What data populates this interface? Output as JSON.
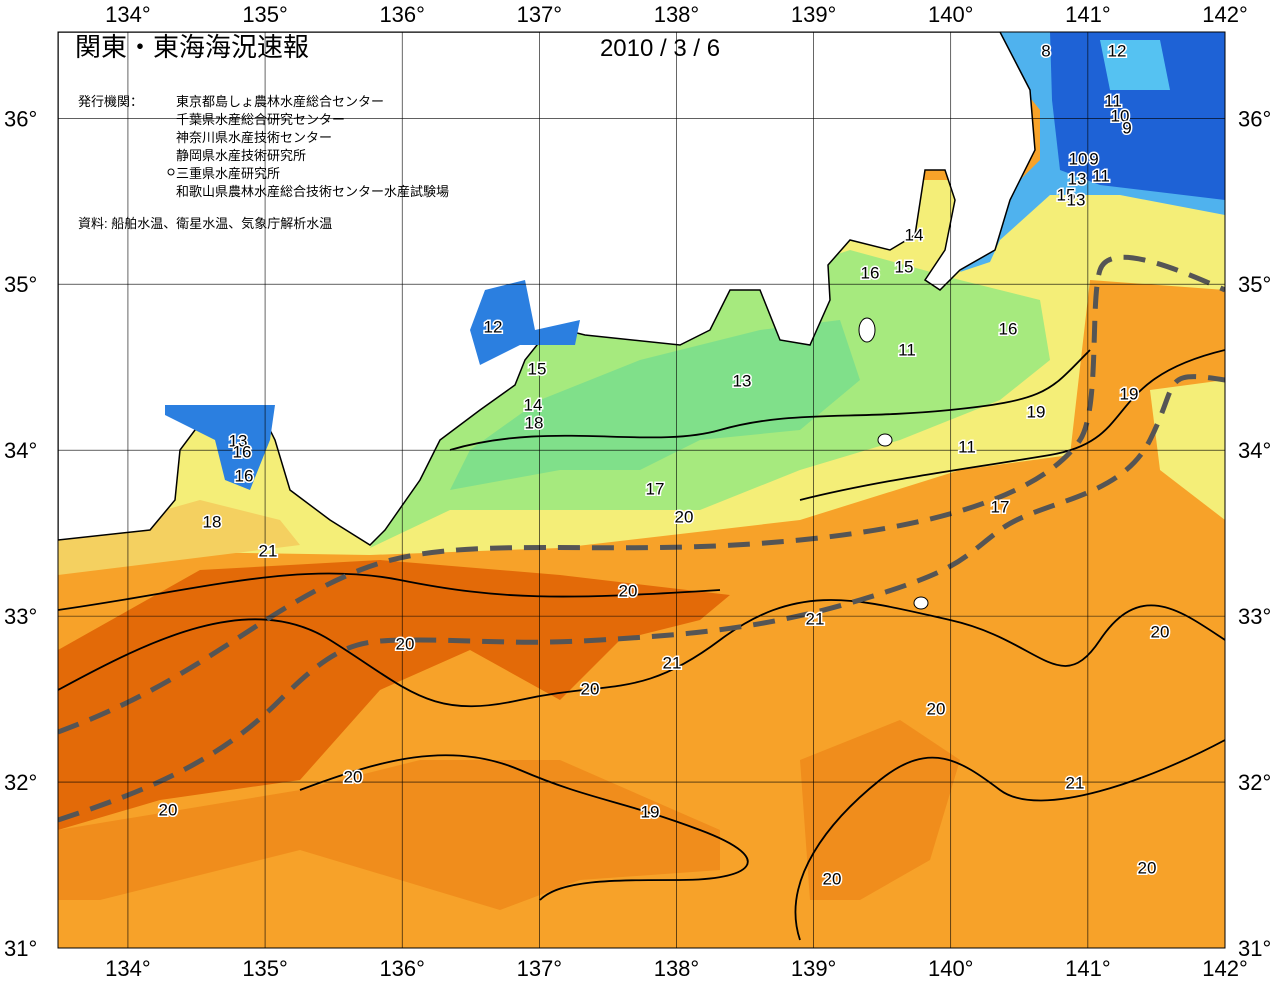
{
  "header": {
    "title": "関東・東海海況速報",
    "date": "2010 / 3 / 6"
  },
  "publisher": {
    "label": "発行機関：",
    "organizations": [
      "東京都島しょ農林水産総合センター",
      "千葉県水産総合研究センター",
      "神奈川県水産技術センター",
      "静岡県水産技術研究所",
      "三重県水産研究所",
      "和歌山県農林水産総合技術センター水産試験場"
    ]
  },
  "source": "資料: 船舶水温、衛星水温、気象庁解析水温",
  "map": {
    "xlim": [
      133.49,
      142
    ],
    "ylim": [
      31,
      36.52
    ],
    "xticks": [
      {
        "value": 134,
        "label": "134°"
      },
      {
        "value": 135,
        "label": "135°"
      },
      {
        "value": 136,
        "label": "136°"
      },
      {
        "value": 137,
        "label": "137°"
      },
      {
        "value": 138,
        "label": "138°"
      },
      {
        "value": 139,
        "label": "139°"
      },
      {
        "value": 140,
        "label": "140°"
      },
      {
        "value": 141,
        "label": "141°"
      },
      {
        "value": 142,
        "label": "142°"
      }
    ],
    "yticks": [
      {
        "value": 31,
        "label": "31°"
      },
      {
        "value": 32,
        "label": "32°"
      },
      {
        "value": 33,
        "label": "33°"
      },
      {
        "value": 34,
        "label": "34°"
      },
      {
        "value": 35,
        "label": "35°"
      },
      {
        "value": 36,
        "label": "36°"
      }
    ],
    "contour_labels": [
      8,
      12,
      11,
      10,
      9,
      10,
      9,
      13,
      11,
      15,
      13,
      14,
      15,
      16,
      16,
      11,
      12,
      15,
      13,
      14,
      18,
      19,
      19,
      11,
      13,
      16,
      16,
      17,
      20,
      17,
      18,
      21,
      20,
      21,
      20,
      20,
      21,
      20,
      20,
      20,
      21,
      20,
      19,
      20,
      20
    ]
  }
}
